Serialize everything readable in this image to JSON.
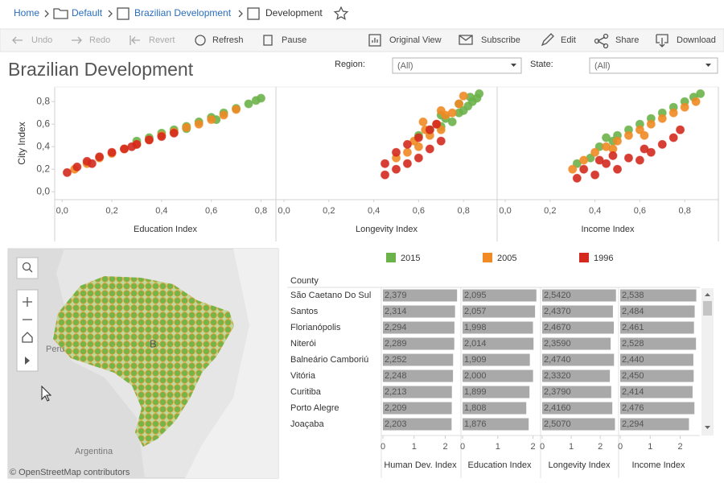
{
  "breadcrumb": [
    "Home",
    "Default",
    "Brazilian Development",
    "Development"
  ],
  "toolbar": [
    "Undo",
    "Redo",
    "Revert",
    "Refresh",
    "Pause",
    "Original View",
    "Subscribe",
    "Edit",
    "Share",
    "Download"
  ],
  "dashboard": {
    "title": "Brazilian Development",
    "filters": [
      {
        "label": "Region:",
        "value": "(All)"
      },
      {
        "label": "State:",
        "value": "(All)"
      }
    ]
  },
  "map": {
    "labels": [
      "Peru",
      "Argentina",
      "B"
    ],
    "attribution": "© OpenStreetMap contributors"
  },
  "chart_data": [
    {
      "type": "scatter",
      "y_label": "City Index",
      "ylim": [
        -0.07,
        0.93
      ],
      "yticks": [
        {
          "value": 0,
          "label": "0,0"
        },
        {
          "value": 0.2,
          "label": "0,2"
        },
        {
          "value": 0.4,
          "label": "0,4"
        },
        {
          "value": 0.6,
          "label": "0,6"
        },
        {
          "value": 0.8,
          "label": "0,8"
        }
      ],
      "panels": [
        {
          "x_label": "Education Index",
          "xlim": [
            -0.03,
            0.86
          ],
          "xticks": [
            {
              "value": 0,
              "label": "0,0"
            },
            {
              "value": 0.2,
              "label": "0,2"
            },
            {
              "value": 0.4,
              "label": "0,4"
            },
            {
              "value": 0.6,
              "label": "0,6"
            },
            {
              "value": 0.8,
              "label": "0,8"
            }
          ]
        },
        {
          "x_label": "Longevity Index",
          "xlim": [
            -0.036,
            0.95
          ],
          "xticks": [
            {
              "value": 0,
              "label": "0,0"
            },
            {
              "value": 0.2,
              "label": "0,2"
            },
            {
              "value": 0.4,
              "label": "0,4"
            },
            {
              "value": 0.6,
              "label": "0,6"
            },
            {
              "value": 0.8,
              "label": "0,8"
            }
          ]
        },
        {
          "x_label": "Income Index",
          "xlim": [
            -0.036,
            0.95
          ],
          "xticks": [
            {
              "value": 0,
              "label": "0,0"
            },
            {
              "value": 0.2,
              "label": "0,2"
            },
            {
              "value": 0.4,
              "label": "0,4"
            },
            {
              "value": 0.6,
              "label": "0,6"
            },
            {
              "value": 0.8,
              "label": "0,8"
            }
          ]
        }
      ],
      "series": [
        {
          "name": "2015",
          "color": "#6cb24a",
          "panels": [
            {
              "x": [
                0.3,
                0.35,
                0.4,
                0.45,
                0.5,
                0.55,
                0.6,
                0.65,
                0.7,
                0.75,
                0.78,
                0.8,
                0.62,
                0.5
              ],
              "y": [
                0.45,
                0.48,
                0.52,
                0.55,
                0.58,
                0.62,
                0.66,
                0.7,
                0.74,
                0.78,
                0.81,
                0.83,
                0.64,
                0.56
              ]
            },
            {
              "x": [
                0.6,
                0.65,
                0.7,
                0.72,
                0.75,
                0.78,
                0.8,
                0.82,
                0.84,
                0.86,
                0.87,
                0.7,
                0.78,
                0.83
              ],
              "y": [
                0.5,
                0.55,
                0.58,
                0.65,
                0.62,
                0.7,
                0.72,
                0.76,
                0.8,
                0.83,
                0.87,
                0.68,
                0.78,
                0.84
              ]
            },
            {
              "x": [
                0.32,
                0.38,
                0.42,
                0.48,
                0.5,
                0.55,
                0.6,
                0.65,
                0.7,
                0.75,
                0.8,
                0.84,
                0.87,
                0.45
              ],
              "y": [
                0.25,
                0.3,
                0.4,
                0.45,
                0.5,
                0.55,
                0.6,
                0.65,
                0.7,
                0.75,
                0.8,
                0.84,
                0.87,
                0.48
              ]
            }
          ]
        },
        {
          "name": "2005",
          "color": "#f08a24",
          "panels": [
            {
              "x": [
                0.05,
                0.1,
                0.15,
                0.2,
                0.25,
                0.3,
                0.35,
                0.4,
                0.45,
                0.5,
                0.55,
                0.6,
                0.65,
                0.7
              ],
              "y": [
                0.2,
                0.25,
                0.3,
                0.34,
                0.38,
                0.42,
                0.46,
                0.5,
                0.53,
                0.57,
                0.6,
                0.64,
                0.68,
                0.73
              ]
            },
            {
              "x": [
                0.5,
                0.55,
                0.58,
                0.6,
                0.63,
                0.65,
                0.68,
                0.7,
                0.72,
                0.75,
                0.78,
                0.8,
                0.7,
                0.62
              ],
              "y": [
                0.3,
                0.35,
                0.45,
                0.4,
                0.55,
                0.5,
                0.6,
                0.55,
                0.68,
                0.7,
                0.78,
                0.85,
                0.72,
                0.62
              ]
            },
            {
              "x": [
                0.3,
                0.35,
                0.4,
                0.45,
                0.5,
                0.55,
                0.6,
                0.65,
                0.7,
                0.75,
                0.8,
                0.85,
                0.62,
                0.48
              ],
              "y": [
                0.2,
                0.28,
                0.35,
                0.4,
                0.45,
                0.5,
                0.55,
                0.6,
                0.65,
                0.7,
                0.75,
                0.8,
                0.5,
                0.38
              ]
            }
          ]
        },
        {
          "name": "1996",
          "color": "#d42a1e",
          "panels": [
            {
              "x": [
                0.02,
                0.06,
                0.1,
                0.15,
                0.2,
                0.25,
                0.3,
                0.35,
                0.4,
                0.45,
                0.12,
                0.28
              ],
              "y": [
                0.17,
                0.22,
                0.27,
                0.31,
                0.35,
                0.38,
                0.42,
                0.46,
                0.49,
                0.52,
                0.25,
                0.4
              ]
            },
            {
              "x": [
                0.45,
                0.45,
                0.5,
                0.5,
                0.55,
                0.55,
                0.6,
                0.6,
                0.65,
                0.65,
                0.7,
                0.68
              ],
              "y": [
                0.15,
                0.25,
                0.2,
                0.35,
                0.25,
                0.42,
                0.3,
                0.48,
                0.38,
                0.55,
                0.45,
                0.6
              ]
            },
            {
              "x": [
                0.32,
                0.35,
                0.4,
                0.45,
                0.5,
                0.55,
                0.6,
                0.62,
                0.65,
                0.7,
                0.75,
                0.78,
                0.48,
                0.42
              ],
              "y": [
                0.12,
                0.2,
                0.15,
                0.25,
                0.2,
                0.3,
                0.28,
                0.38,
                0.35,
                0.42,
                0.48,
                0.55,
                0.32,
                0.28
              ]
            }
          ]
        }
      ]
    },
    {
      "type": "bar_table",
      "row_header": "County",
      "categories": [
        "São Caetano Do Sul",
        "Santos",
        "Florianópolis",
        "Niterói",
        "Balneário Camboriú",
        "Vitória",
        "Curitiba",
        "Porto Alegre",
        "Joaçaba"
      ],
      "color": "#a9a9a9",
      "columns": [
        {
          "name": "Human Dev. Index",
          "xlim": [
            0,
            2.4
          ],
          "xticks": [
            0,
            1,
            2
          ],
          "values": [
            2.379,
            2.314,
            2.294,
            2.289,
            2.252,
            2.248,
            2.213,
            2.209,
            2.203
          ],
          "value_labels": [
            "2,379",
            "2,314",
            "2,294",
            "2,289",
            "2,252",
            "2,248",
            "2,213",
            "2,209",
            "2,203"
          ]
        },
        {
          "name": "Education Index",
          "xlim": [
            0,
            2.1
          ],
          "xticks": [
            0,
            1,
            2
          ],
          "values": [
            2.095,
            2.057,
            1.998,
            2.014,
            1.909,
            2.0,
            1.899,
            1.808,
            1.876
          ],
          "value_labels": [
            "2,095",
            "2,057",
            "1,998",
            "2,014",
            "1,909",
            "2,000",
            "1,899",
            "1,808",
            "1,876"
          ]
        },
        {
          "name": "Longevity Index",
          "xlim": [
            0,
            2.55
          ],
          "xticks": [
            0,
            1,
            2
          ],
          "values": [
            2.542,
            2.437,
            2.467,
            2.359,
            2.474,
            2.332,
            2.379,
            2.416,
            2.507
          ],
          "value_labels": [
            "2,5420",
            "2,4370",
            "2,4670",
            "2,3590",
            "2,4740",
            "2,3320",
            "2,3790",
            "2,4160",
            "2,5070"
          ]
        },
        {
          "name": "Income Index",
          "xlim": [
            0,
            2.55
          ],
          "xticks": [
            0,
            1,
            2
          ],
          "values": [
            2.538,
            2.484,
            2.461,
            2.528,
            2.44,
            2.45,
            2.414,
            2.476,
            2.294
          ],
          "value_labels": [
            "2,538",
            "2,484",
            "2,461",
            "2,528",
            "2,440",
            "2,450",
            "2,414",
            "2,476",
            "2,294"
          ]
        }
      ]
    }
  ]
}
